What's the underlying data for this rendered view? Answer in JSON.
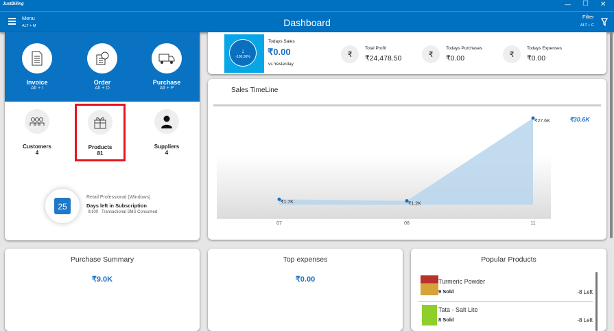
{
  "app": {
    "logo": "JustBilling",
    "title": "Dashboard",
    "menu_label": "Menu",
    "menu_shortcut": "ALT + M",
    "filter_label": "Filter",
    "filter_shortcut": "ALT + C"
  },
  "window_controls": {
    "minimize": "—",
    "maximize": "☐",
    "close": "✕"
  },
  "quick_actions": [
    {
      "label": "Invoice",
      "shortcut": "Alt + I",
      "icon": "invoice-icon"
    },
    {
      "label": "Order",
      "shortcut": "Alt + O",
      "icon": "order-icon"
    },
    {
      "label": "Purchase",
      "shortcut": "Alt + P",
      "icon": "truck-icon"
    }
  ],
  "entities": [
    {
      "label": "Customers",
      "count": "4",
      "icon": "customers-icon"
    },
    {
      "label": "Products",
      "count": "81",
      "icon": "gift-icon",
      "highlighted": true
    },
    {
      "label": "Suppliers",
      "count": "4",
      "icon": "supplier-icon"
    }
  ],
  "subscription": {
    "days": "25",
    "plan": "Retail Professional (Windows)",
    "label": "Days left in Subscription",
    "sms_count": "0/100",
    "sms_label": "Transactional SMS Consumed"
  },
  "stats": {
    "todays_sales": {
      "title": "Todays Sales",
      "value": "₹0.00",
      "change": "-100.00%",
      "vs": "vs Yesterday"
    },
    "items": [
      {
        "title": "Total Profit",
        "value": "₹24,478.50",
        "icon": "₹"
      },
      {
        "title": "Todays Purchases",
        "value": "₹0.00",
        "icon": "₹"
      },
      {
        "title": "Todays Expenses",
        "value": "₹0.00",
        "icon": "₹"
      }
    ]
  },
  "chart_data": {
    "type": "area",
    "title": "Sales TimeLine",
    "categories": [
      "07",
      "08",
      "11"
    ],
    "values": [
      1.7,
      1.2,
      27.6
    ],
    "data_labels": [
      "₹1.7K",
      "₹1.2K",
      "₹27.6K"
    ],
    "total": "₹30.6K",
    "ylim": [
      0,
      27.6
    ],
    "grid": false,
    "color": "#b7d5ec"
  },
  "purchase_summary": {
    "title": "Purchase Summary",
    "value": "₹9.0K"
  },
  "top_expenses": {
    "title": "Top expenses",
    "value": "₹0.00"
  },
  "popular_products": {
    "title": "Popular Products",
    "items": [
      {
        "name": "Turmeric Powder",
        "sold": "9 Sold",
        "left": "-8 Left"
      },
      {
        "name": "Tata - Salt Lite",
        "sold": "8 Sold",
        "left": "-8 Left"
      }
    ]
  }
}
